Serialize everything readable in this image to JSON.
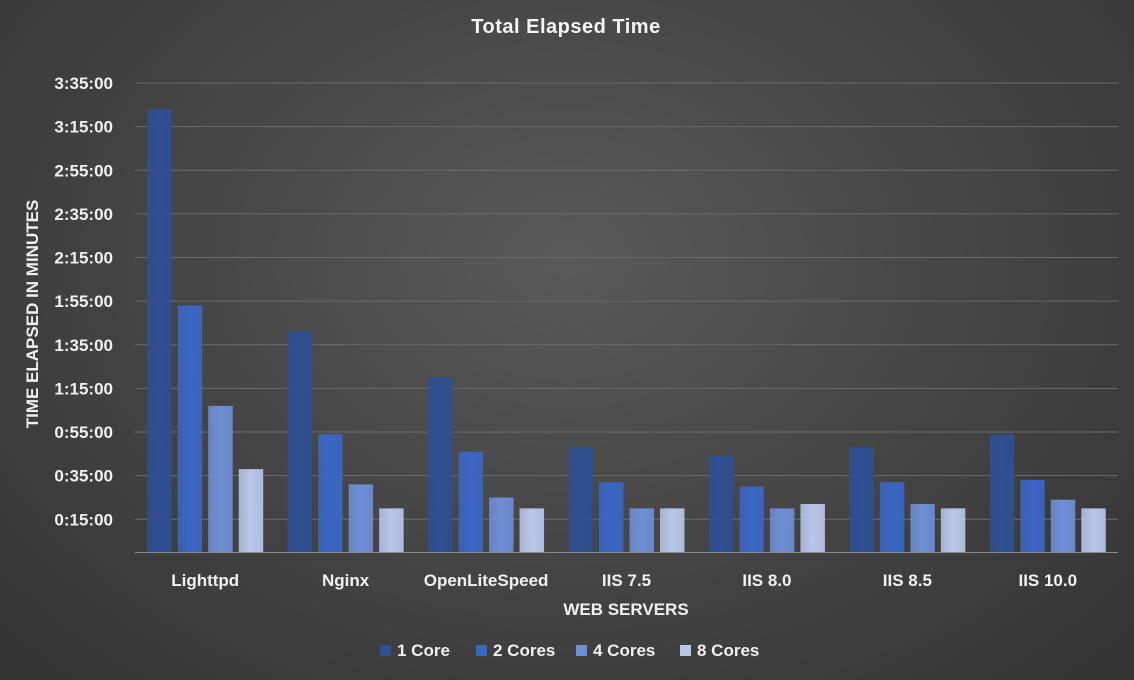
{
  "chart_data": {
    "type": "bar",
    "title": "Total Elapsed Time",
    "xlabel": "WEB SERVERS",
    "ylabel": "TIME ELAPSED IN MINUTES",
    "y_unit": "minutes",
    "ylim": [
      0,
      215
    ],
    "yticks": [
      15,
      35,
      55,
      75,
      95,
      115,
      135,
      155,
      175,
      195,
      215
    ],
    "ytick_labels": [
      "0:15:00",
      "0:35:00",
      "0:55:00",
      "1:15:00",
      "1:35:00",
      "1:55:00",
      "2:15:00",
      "2:35:00",
      "2:55:00",
      "3:15:00",
      "3:35:00"
    ],
    "categories": [
      "Lighttpd",
      "Nginx",
      "OpenLiteSpeed",
      "IIS 7.5",
      "IIS 8.0",
      "IIS 8.5",
      "IIS 10.0"
    ],
    "series": [
      {
        "name": "1 Core",
        "color": "#2e4f92",
        "values": [
          203,
          101,
          80,
          48,
          44,
          48,
          54
        ]
      },
      {
        "name": "2 Cores",
        "color": "#3a66c4",
        "values": [
          113,
          54,
          46,
          32,
          30,
          32,
          33
        ]
      },
      {
        "name": "4 Cores",
        "color": "#6f8ed6",
        "values": [
          67,
          31,
          25,
          20,
          20,
          22,
          24
        ]
      },
      {
        "name": "8 Cores",
        "color": "#b9c6ea",
        "values": [
          38,
          20,
          20,
          20,
          22,
          20,
          20
        ]
      }
    ],
    "grid": true,
    "legend_position": "bottom"
  }
}
